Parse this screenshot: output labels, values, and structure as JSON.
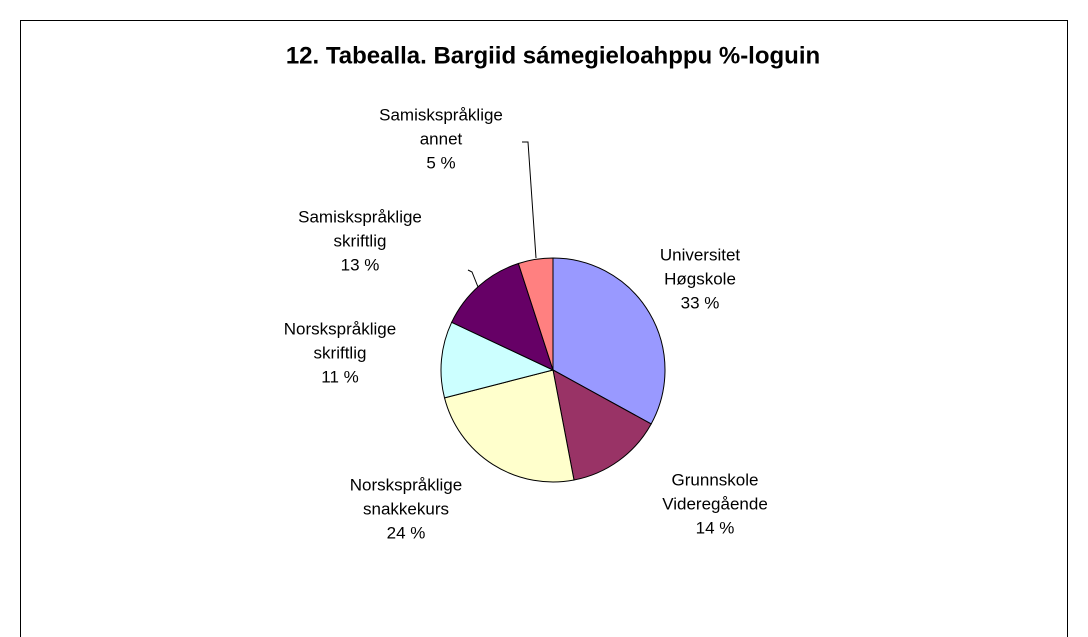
{
  "chart_data": {
    "type": "pie",
    "title": "12. Tabealla. Bargiid sámegieloahppu %-loguin",
    "categories": [
      [
        "Universitet",
        "Høgskole"
      ],
      [
        "Grunnskole",
        "Videregående"
      ],
      [
        "Norskspråklige",
        "snakkekurs"
      ],
      [
        "Norskspråklige",
        "skriftlig"
      ],
      [
        "Samiskspråklige",
        "skriftlig"
      ],
      [
        "Samiskspråklige",
        "annet"
      ]
    ],
    "values": [
      33,
      14,
      24,
      11,
      13,
      5
    ],
    "value_labels": [
      "33 %",
      "14 %",
      "24 %",
      "11 %",
      "13 %",
      "5 %"
    ],
    "colors": [
      "#9999ff",
      "#993366",
      "#ffffcc",
      "#ccffff",
      "#660066",
      "#ff8080"
    ]
  }
}
